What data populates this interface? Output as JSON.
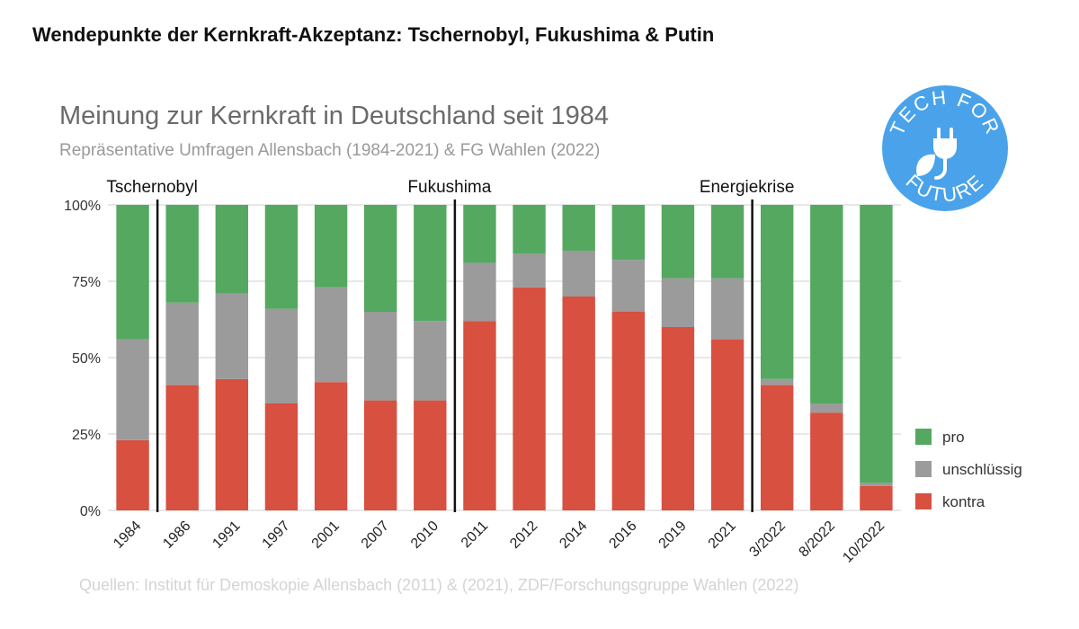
{
  "header": {
    "title": "Wendepunkte der Kernkraft-Akzeptanz: Tschernobyl, Fukushima & Putin"
  },
  "badge": {
    "text_top": "TECH FOR",
    "text_bottom": "FUTURE",
    "color": "#4aa3ea"
  },
  "source": "Quellen: Institut für Demoskopie Allensbach (2011) & (2021), ZDF/Forschungsgruppe Wahlen (2022)",
  "chart_data": {
    "type": "bar",
    "stacked": true,
    "title": "Meinung zur Kernkraft in Deutschland seit 1984",
    "subtitle": "Repräsentative Umfragen Allensbach (1984-2021) & FG Wahlen (2022)",
    "categories": [
      "1984",
      "1986",
      "1991",
      "1997",
      "2001",
      "2007",
      "2010",
      "2011",
      "2012",
      "2014",
      "2016",
      "2019",
      "2021",
      "3/2022",
      "8/2022",
      "10/2022"
    ],
    "series": [
      {
        "name": "kontra",
        "color": "#d85040",
        "values": [
          23,
          41,
          43,
          35,
          42,
          36,
          36,
          62,
          73,
          70,
          65,
          60,
          56,
          41,
          32,
          8
        ]
      },
      {
        "name": "unschlüssig",
        "color": "#9b9b9b",
        "values": [
          33,
          27,
          28,
          31,
          31,
          29,
          26,
          19,
          11,
          15,
          17,
          16,
          20,
          2,
          3,
          1
        ]
      },
      {
        "name": "pro",
        "color": "#55a860",
        "values": [
          44,
          32,
          29,
          34,
          27,
          35,
          38,
          19,
          16,
          15,
          18,
          24,
          24,
          57,
          65,
          91
        ]
      }
    ],
    "legend_order": [
      "pro",
      "unschlüssig",
      "kontra"
    ],
    "ylim": [
      0,
      100
    ],
    "yticks": [
      "0%",
      "25%",
      "50%",
      "75%",
      "100%"
    ],
    "yticks_values": [
      0,
      25,
      50,
      75,
      100
    ],
    "events": [
      {
        "label": "Tschernobyl",
        "after_category": "1984"
      },
      {
        "label": "Fukushima",
        "after_category": "2010"
      },
      {
        "label": "Energiekrise",
        "after_category": "2021"
      }
    ],
    "legend_position": "right",
    "grid": true
  }
}
